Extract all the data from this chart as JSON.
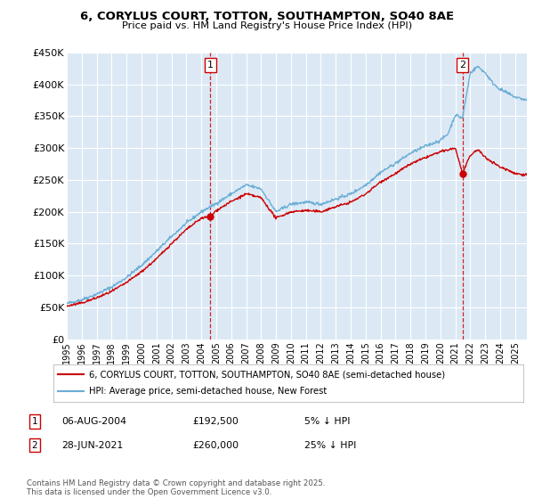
{
  "title_line1": "6, CORYLUS COURT, TOTTON, SOUTHAMPTON, SO40 8AE",
  "title_line2": "Price paid vs. HM Land Registry's House Price Index (HPI)",
  "ylabel_ticks": [
    "£0",
    "£50K",
    "£100K",
    "£150K",
    "£200K",
    "£250K",
    "£300K",
    "£350K",
    "£400K",
    "£450K"
  ],
  "ytick_values": [
    0,
    50000,
    100000,
    150000,
    200000,
    250000,
    300000,
    350000,
    400000,
    450000
  ],
  "hpi_color": "#6baed6",
  "price_color": "#cc0000",
  "dashed_line_color": "#cc0000",
  "plot_bg": "#dce9f5",
  "grid_color": "#c8d8e8",
  "ann1_x": 2004.6,
  "ann1_price": 192500,
  "ann2_x": 2021.48,
  "ann2_price": 260000,
  "legend_price": "6, CORYLUS COURT, TOTTON, SOUTHAMPTON, SO40 8AE (semi-detached house)",
  "legend_hpi": "HPI: Average price, semi-detached house, New Forest",
  "footer": "Contains HM Land Registry data © Crown copyright and database right 2025.\nThis data is licensed under the Open Government Licence v3.0.",
  "xmin": 1995.0,
  "xmax": 2025.8,
  "hpi_knots_x": [
    1995,
    1996,
    1997,
    1998,
    1999,
    2000,
    2001,
    2002,
    2003,
    2004,
    2005,
    2006,
    2007,
    2008,
    2009,
    2010,
    2011,
    2012,
    2013,
    2014,
    2015,
    2016,
    2017,
    2018,
    2019,
    2020,
    2020.5,
    2021,
    2021.48,
    2022,
    2022.5,
    2023,
    2023.5,
    2024,
    2024.5,
    2025,
    2025.8
  ],
  "hpi_knots_y": [
    56000,
    62000,
    71000,
    82000,
    97000,
    116000,
    138000,
    161000,
    182000,
    200000,
    213000,
    228000,
    242000,
    236000,
    200000,
    212000,
    215000,
    212000,
    220000,
    228000,
    242000,
    262000,
    276000,
    292000,
    303000,
    312000,
    322000,
    352000,
    347000,
    418000,
    428000,
    418000,
    402000,
    392000,
    386000,
    380000,
    375000
  ],
  "price_knots_x": [
    1995,
    1996,
    1997,
    1998,
    1999,
    2000,
    2001,
    2002,
    2003,
    2004,
    2004.6,
    2005,
    2006,
    2007,
    2008,
    2009,
    2010,
    2011,
    2012,
    2013,
    2014,
    2015,
    2016,
    2017,
    2018,
    2019,
    2020,
    2021,
    2021.48,
    2022,
    2022.5,
    2023,
    2023.5,
    2024,
    2024.5,
    2025,
    2025.8
  ],
  "price_knots_y": [
    52000,
    57000,
    65000,
    75000,
    89000,
    106000,
    126000,
    150000,
    172000,
    190000,
    192500,
    202000,
    216000,
    228000,
    222000,
    190000,
    200000,
    202000,
    200000,
    208000,
    215000,
    228000,
    247000,
    260000,
    275000,
    285000,
    294000,
    300000,
    260000,
    288000,
    298000,
    285000,
    278000,
    270000,
    266000,
    260000,
    258000
  ]
}
